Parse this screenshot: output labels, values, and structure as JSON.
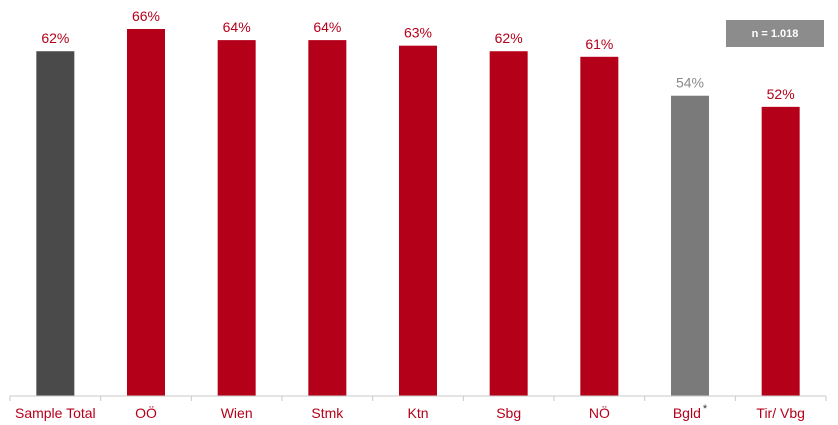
{
  "sample_badge": "n = 1.018",
  "colors": {
    "total": "#4a4a4a",
    "region": "#b5001a",
    "low_base": "#7a7a7a",
    "label_region": "#b5001a",
    "label_low_base": "#8a8a8a",
    "axis_text": "#b5001a"
  },
  "chart_data": {
    "type": "bar",
    "title": "",
    "xlabel": "",
    "ylabel": "",
    "ylim": [
      0,
      70
    ],
    "grid": false,
    "categories": [
      "Sample Total",
      "OÖ",
      "Wien",
      "Stmk",
      "Ktn",
      "Sbg",
      "NÖ",
      "Bgld",
      "Tir/ Vbg"
    ],
    "category_marks": [
      "",
      "",
      "",
      "",
      "",
      "",
      "",
      "*",
      ""
    ],
    "values": [
      62,
      66,
      64,
      64,
      63,
      62,
      61,
      54,
      52
    ],
    "value_labels": [
      "62%",
      "66%",
      "64%",
      "64%",
      "63%",
      "62%",
      "61%",
      "54%",
      "52%"
    ],
    "bar_roles": [
      "total",
      "region",
      "region",
      "region",
      "region",
      "region",
      "region",
      "low_base",
      "region"
    ]
  }
}
